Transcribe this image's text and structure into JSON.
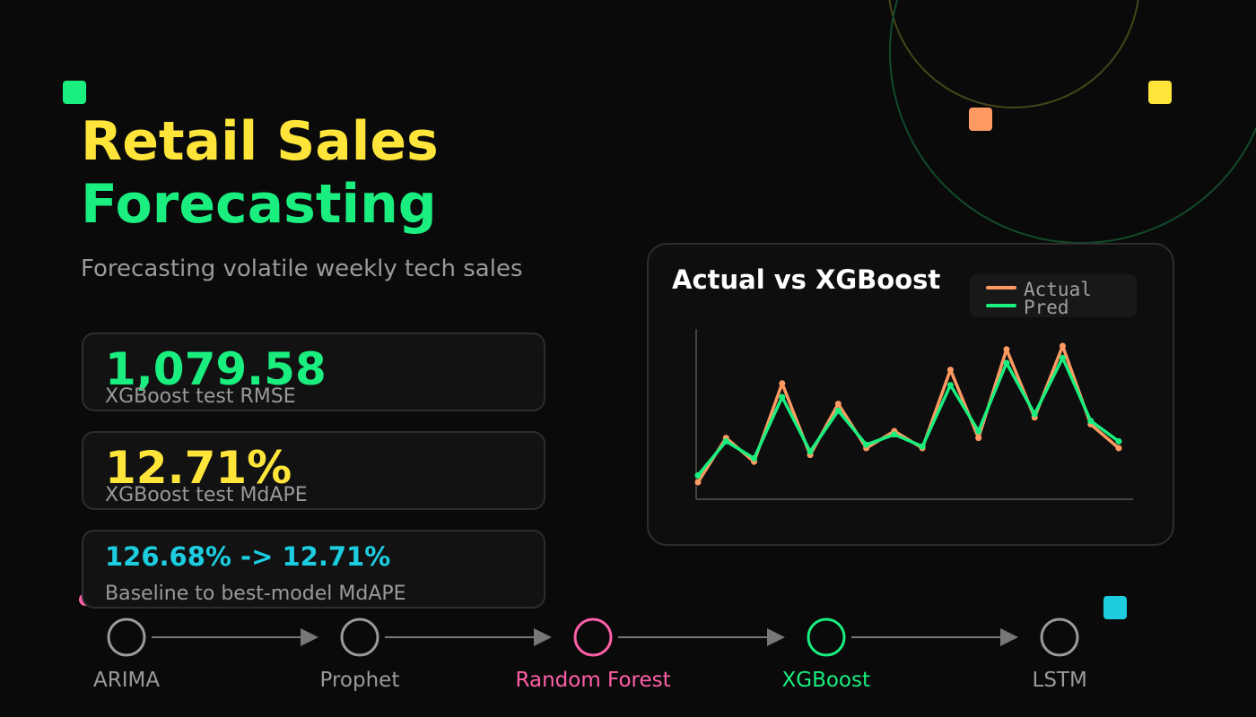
{
  "title": {
    "line1": "Retail Sales",
    "line2": "Forecasting"
  },
  "subtitle": "Forecasting volatile weekly tech sales",
  "stats": [
    {
      "value": "1,079.58",
      "label": "XGBoost test RMSE",
      "color": "#19ee7f"
    },
    {
      "value": "12.71%",
      "label": "XGBoost test MdAPE",
      "color": "#ffe53a"
    },
    {
      "value": "126.68% -> 12.71%",
      "label": "Baseline to best-model MdAPE",
      "color": "#1ccde0"
    }
  ],
  "chart": {
    "title": "Actual vs XGBoost",
    "legend": [
      {
        "name": "Actual",
        "color": "#ff9a62"
      },
      {
        "name": "Pred",
        "color": "#19ee7f"
      }
    ]
  },
  "chart_data": {
    "type": "line",
    "title": "Actual vs XGBoost",
    "x": [
      1,
      2,
      3,
      4,
      5,
      6,
      7,
      8,
      9,
      10,
      11,
      12,
      13,
      14,
      15,
      16
    ],
    "series": [
      {
        "name": "Actual",
        "color": "#ff9a62",
        "values": [
          10,
          36,
          22,
          68,
          26,
          56,
          30,
          40,
          30,
          76,
          36,
          88,
          48,
          90,
          44,
          30
        ]
      },
      {
        "name": "Pred",
        "color": "#19ee7f",
        "values": [
          14,
          34,
          24,
          60,
          28,
          52,
          32,
          38,
          31,
          67,
          40,
          80,
          50,
          83,
          46,
          34
        ]
      }
    ],
    "ylim": [
      0,
      100
    ],
    "grid": false,
    "legend_position": "top-right"
  },
  "pipeline": [
    {
      "label": "ARIMA",
      "color": "#9a9a9a",
      "ring": "#9a9a9a"
    },
    {
      "label": "Prophet",
      "color": "#9a9a9a",
      "ring": "#9a9a9a"
    },
    {
      "label": "Random Forest",
      "color": "#ff5fa8",
      "ring": "#ff5fa8"
    },
    {
      "label": "XGBoost",
      "color": "#19ee7f",
      "ring": "#19ee7f"
    },
    {
      "label": "LSTM",
      "color": "#9a9a9a",
      "ring": "#9a9a9a"
    }
  ],
  "colors": {
    "yellow": "#ffe53a",
    "green": "#19ee7f",
    "orange": "#ff9a62",
    "cyan": "#1ccde0",
    "pink": "#ff5fa8",
    "gray": "#9a9a9a"
  }
}
